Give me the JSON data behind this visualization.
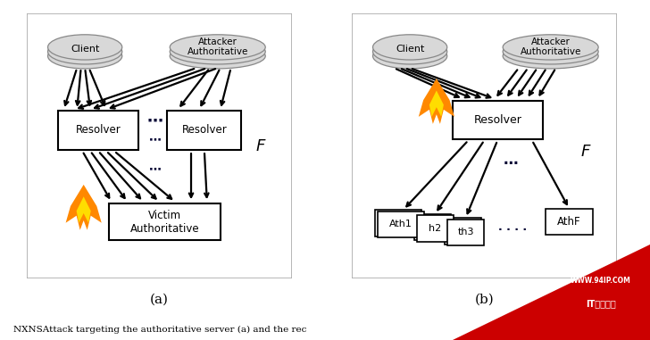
{
  "bg_color": "#ffffff",
  "ellipse_fill": "#d8d8d8",
  "ellipse_edge": "#888888",
  "box_fill": "#ffffff",
  "box_edge": "#000000",
  "arrow_color": "#000000",
  "dot_color": "#000033",
  "fire_outer": "#ff8800",
  "fire_inner": "#ffdd00",
  "fire_red": "#dd2200",
  "caption_a": "(a)",
  "caption_b": "(b)",
  "bottom_text": "NXNSAttack targeting the authoritative server (a) and the rec",
  "wm_line1": "WWW.94IP.COM",
  "wm_line2": "IT运维空间",
  "wm_color": "#cc0000"
}
